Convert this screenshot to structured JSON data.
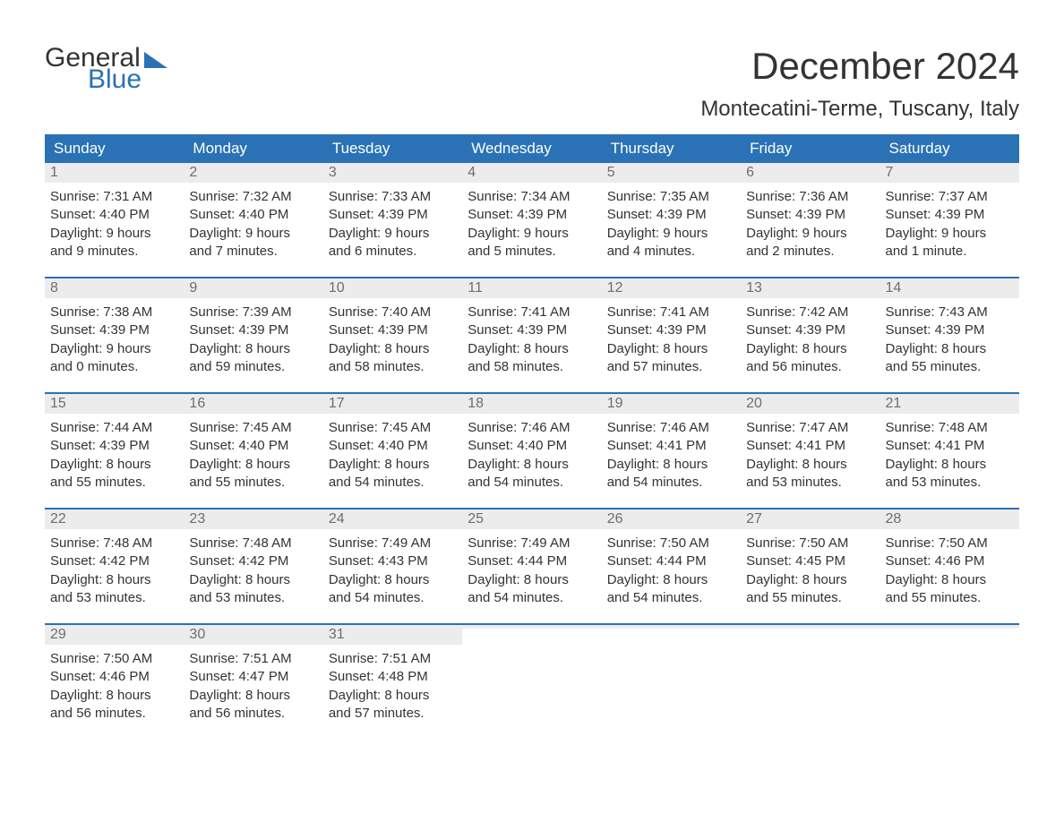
{
  "brand": {
    "word1": "General",
    "word2": "Blue"
  },
  "title": "December 2024",
  "location": "Montecatini-Terme, Tuscany, Italy",
  "colors": {
    "accent": "#2a72b5",
    "header_bg": "#2a72b5",
    "header_text": "#ffffff",
    "daynum_bg": "#ececec",
    "daynum_text": "#6e6e6e",
    "body_text": "#333333",
    "background": "#ffffff"
  },
  "typography": {
    "title_fontsize": 42,
    "location_fontsize": 24,
    "cell_fontsize": 15
  },
  "calendar": {
    "day_headers": [
      "Sunday",
      "Monday",
      "Tuesday",
      "Wednesday",
      "Thursday",
      "Friday",
      "Saturday"
    ],
    "weeks": [
      [
        {
          "n": "1",
          "sunrise": "Sunrise: 7:31 AM",
          "sunset": "Sunset: 4:40 PM",
          "d1": "Daylight: 9 hours",
          "d2": "and 9 minutes."
        },
        {
          "n": "2",
          "sunrise": "Sunrise: 7:32 AM",
          "sunset": "Sunset: 4:40 PM",
          "d1": "Daylight: 9 hours",
          "d2": "and 7 minutes."
        },
        {
          "n": "3",
          "sunrise": "Sunrise: 7:33 AM",
          "sunset": "Sunset: 4:39 PM",
          "d1": "Daylight: 9 hours",
          "d2": "and 6 minutes."
        },
        {
          "n": "4",
          "sunrise": "Sunrise: 7:34 AM",
          "sunset": "Sunset: 4:39 PM",
          "d1": "Daylight: 9 hours",
          "d2": "and 5 minutes."
        },
        {
          "n": "5",
          "sunrise": "Sunrise: 7:35 AM",
          "sunset": "Sunset: 4:39 PM",
          "d1": "Daylight: 9 hours",
          "d2": "and 4 minutes."
        },
        {
          "n": "6",
          "sunrise": "Sunrise: 7:36 AM",
          "sunset": "Sunset: 4:39 PM",
          "d1": "Daylight: 9 hours",
          "d2": "and 2 minutes."
        },
        {
          "n": "7",
          "sunrise": "Sunrise: 7:37 AM",
          "sunset": "Sunset: 4:39 PM",
          "d1": "Daylight: 9 hours",
          "d2": "and 1 minute."
        }
      ],
      [
        {
          "n": "8",
          "sunrise": "Sunrise: 7:38 AM",
          "sunset": "Sunset: 4:39 PM",
          "d1": "Daylight: 9 hours",
          "d2": "and 0 minutes."
        },
        {
          "n": "9",
          "sunrise": "Sunrise: 7:39 AM",
          "sunset": "Sunset: 4:39 PM",
          "d1": "Daylight: 8 hours",
          "d2": "and 59 minutes."
        },
        {
          "n": "10",
          "sunrise": "Sunrise: 7:40 AM",
          "sunset": "Sunset: 4:39 PM",
          "d1": "Daylight: 8 hours",
          "d2": "and 58 minutes."
        },
        {
          "n": "11",
          "sunrise": "Sunrise: 7:41 AM",
          "sunset": "Sunset: 4:39 PM",
          "d1": "Daylight: 8 hours",
          "d2": "and 58 minutes."
        },
        {
          "n": "12",
          "sunrise": "Sunrise: 7:41 AM",
          "sunset": "Sunset: 4:39 PM",
          "d1": "Daylight: 8 hours",
          "d2": "and 57 minutes."
        },
        {
          "n": "13",
          "sunrise": "Sunrise: 7:42 AM",
          "sunset": "Sunset: 4:39 PM",
          "d1": "Daylight: 8 hours",
          "d2": "and 56 minutes."
        },
        {
          "n": "14",
          "sunrise": "Sunrise: 7:43 AM",
          "sunset": "Sunset: 4:39 PM",
          "d1": "Daylight: 8 hours",
          "d2": "and 55 minutes."
        }
      ],
      [
        {
          "n": "15",
          "sunrise": "Sunrise: 7:44 AM",
          "sunset": "Sunset: 4:39 PM",
          "d1": "Daylight: 8 hours",
          "d2": "and 55 minutes."
        },
        {
          "n": "16",
          "sunrise": "Sunrise: 7:45 AM",
          "sunset": "Sunset: 4:40 PM",
          "d1": "Daylight: 8 hours",
          "d2": "and 55 minutes."
        },
        {
          "n": "17",
          "sunrise": "Sunrise: 7:45 AM",
          "sunset": "Sunset: 4:40 PM",
          "d1": "Daylight: 8 hours",
          "d2": "and 54 minutes."
        },
        {
          "n": "18",
          "sunrise": "Sunrise: 7:46 AM",
          "sunset": "Sunset: 4:40 PM",
          "d1": "Daylight: 8 hours",
          "d2": "and 54 minutes."
        },
        {
          "n": "19",
          "sunrise": "Sunrise: 7:46 AM",
          "sunset": "Sunset: 4:41 PM",
          "d1": "Daylight: 8 hours",
          "d2": "and 54 minutes."
        },
        {
          "n": "20",
          "sunrise": "Sunrise: 7:47 AM",
          "sunset": "Sunset: 4:41 PM",
          "d1": "Daylight: 8 hours",
          "d2": "and 53 minutes."
        },
        {
          "n": "21",
          "sunrise": "Sunrise: 7:48 AM",
          "sunset": "Sunset: 4:41 PM",
          "d1": "Daylight: 8 hours",
          "d2": "and 53 minutes."
        }
      ],
      [
        {
          "n": "22",
          "sunrise": "Sunrise: 7:48 AM",
          "sunset": "Sunset: 4:42 PM",
          "d1": "Daylight: 8 hours",
          "d2": "and 53 minutes."
        },
        {
          "n": "23",
          "sunrise": "Sunrise: 7:48 AM",
          "sunset": "Sunset: 4:42 PM",
          "d1": "Daylight: 8 hours",
          "d2": "and 53 minutes."
        },
        {
          "n": "24",
          "sunrise": "Sunrise: 7:49 AM",
          "sunset": "Sunset: 4:43 PM",
          "d1": "Daylight: 8 hours",
          "d2": "and 54 minutes."
        },
        {
          "n": "25",
          "sunrise": "Sunrise: 7:49 AM",
          "sunset": "Sunset: 4:44 PM",
          "d1": "Daylight: 8 hours",
          "d2": "and 54 minutes."
        },
        {
          "n": "26",
          "sunrise": "Sunrise: 7:50 AM",
          "sunset": "Sunset: 4:44 PM",
          "d1": "Daylight: 8 hours",
          "d2": "and 54 minutes."
        },
        {
          "n": "27",
          "sunrise": "Sunrise: 7:50 AM",
          "sunset": "Sunset: 4:45 PM",
          "d1": "Daylight: 8 hours",
          "d2": "and 55 minutes."
        },
        {
          "n": "28",
          "sunrise": "Sunrise: 7:50 AM",
          "sunset": "Sunset: 4:46 PM",
          "d1": "Daylight: 8 hours",
          "d2": "and 55 minutes."
        }
      ],
      [
        {
          "n": "29",
          "sunrise": "Sunrise: 7:50 AM",
          "sunset": "Sunset: 4:46 PM",
          "d1": "Daylight: 8 hours",
          "d2": "and 56 minutes."
        },
        {
          "n": "30",
          "sunrise": "Sunrise: 7:51 AM",
          "sunset": "Sunset: 4:47 PM",
          "d1": "Daylight: 8 hours",
          "d2": "and 56 minutes."
        },
        {
          "n": "31",
          "sunrise": "Sunrise: 7:51 AM",
          "sunset": "Sunset: 4:48 PM",
          "d1": "Daylight: 8 hours",
          "d2": "and 57 minutes."
        },
        {
          "n": "",
          "sunrise": "",
          "sunset": "",
          "d1": "",
          "d2": ""
        },
        {
          "n": "",
          "sunrise": "",
          "sunset": "",
          "d1": "",
          "d2": ""
        },
        {
          "n": "",
          "sunrise": "",
          "sunset": "",
          "d1": "",
          "d2": ""
        },
        {
          "n": "",
          "sunrise": "",
          "sunset": "",
          "d1": "",
          "d2": ""
        }
      ]
    ]
  }
}
